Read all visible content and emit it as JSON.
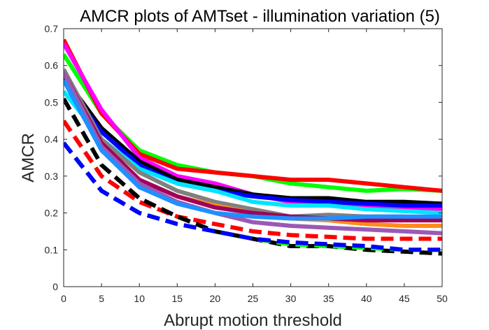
{
  "chart_data": {
    "type": "line",
    "title": "AMCR plots of AMTset - illumination variation (5)",
    "xlabel": "Abrupt motion threshold",
    "ylabel": "AMCR",
    "xlim": [
      0,
      50
    ],
    "ylim": [
      0,
      0.7
    ],
    "xticks": [
      "0",
      "5",
      "10",
      "15",
      "20",
      "25",
      "30",
      "35",
      "40",
      "45",
      "50"
    ],
    "yticks": [
      "0",
      "0.1",
      "0.2",
      "0.3",
      "0.4",
      "0.5",
      "0.6",
      "0.7"
    ],
    "grid": false,
    "legend": "none",
    "x": [
      0,
      5,
      10,
      15,
      20,
      25,
      30,
      35,
      40,
      45,
      50
    ],
    "series": [
      {
        "color": "#00ff00",
        "style": "solid",
        "values": [
          0.63,
          0.47,
          0.37,
          0.33,
          0.31,
          0.3,
          0.28,
          0.27,
          0.26,
          0.265,
          0.26
        ]
      },
      {
        "color": "#ff0000",
        "style": "solid",
        "values": [
          0.67,
          0.47,
          0.36,
          0.32,
          0.31,
          0.3,
          0.29,
          0.29,
          0.28,
          0.27,
          0.26
        ]
      },
      {
        "color": "#ff00ff",
        "style": "solid",
        "values": [
          0.66,
          0.48,
          0.35,
          0.3,
          0.28,
          0.25,
          0.23,
          0.23,
          0.22,
          0.215,
          0.21
        ]
      },
      {
        "color": "#000000",
        "style": "solid",
        "values": [
          0.57,
          0.43,
          0.34,
          0.29,
          0.27,
          0.25,
          0.24,
          0.24,
          0.23,
          0.23,
          0.225
        ]
      },
      {
        "color": "#0000ff",
        "style": "solid",
        "values": [
          0.56,
          0.42,
          0.33,
          0.28,
          0.26,
          0.245,
          0.235,
          0.23,
          0.225,
          0.22,
          0.22
        ]
      },
      {
        "color": "#00e5ff",
        "style": "solid",
        "values": [
          0.53,
          0.4,
          0.32,
          0.28,
          0.26,
          0.23,
          0.22,
          0.22,
          0.21,
          0.205,
          0.2
        ]
      },
      {
        "color": "#808080",
        "style": "solid",
        "values": [
          0.59,
          0.4,
          0.31,
          0.26,
          0.23,
          0.21,
          0.19,
          0.195,
          0.19,
          0.19,
          0.185
        ]
      },
      {
        "color": "#ff8c1a",
        "style": "solid",
        "values": [
          0.58,
          0.39,
          0.29,
          0.245,
          0.22,
          0.2,
          0.185,
          0.18,
          0.17,
          0.165,
          0.165
        ]
      },
      {
        "color": "#a0005a",
        "style": "solid",
        "values": [
          0.58,
          0.39,
          0.29,
          0.245,
          0.215,
          0.2,
          0.19,
          0.185,
          0.18,
          0.18,
          0.18
        ]
      },
      {
        "color": "#9b59b6",
        "style": "solid",
        "values": [
          0.58,
          0.38,
          0.28,
          0.23,
          0.2,
          0.175,
          0.165,
          0.16,
          0.155,
          0.15,
          0.145
        ]
      },
      {
        "color": "#1e90ff",
        "style": "solid",
        "values": [
          0.56,
          0.37,
          0.27,
          0.225,
          0.2,
          0.19,
          0.185,
          0.185,
          0.19,
          0.19,
          0.19
        ]
      },
      {
        "color": "#ff0000",
        "style": "dashed",
        "values": [
          0.45,
          0.3,
          0.23,
          0.19,
          0.17,
          0.15,
          0.14,
          0.135,
          0.13,
          0.13,
          0.13
        ]
      },
      {
        "color": "#000000",
        "style": "dashed",
        "values": [
          0.51,
          0.33,
          0.24,
          0.19,
          0.15,
          0.13,
          0.11,
          0.11,
          0.1,
          0.095,
          0.09
        ]
      },
      {
        "color": "#00ff00",
        "style": "dashed",
        "values": [
          0.39,
          0.26,
          0.2,
          0.17,
          0.15,
          0.13,
          0.115,
          0.11,
          0.105,
          0.1,
          0.1
        ]
      },
      {
        "color": "#0000ff",
        "style": "dashed",
        "values": [
          0.39,
          0.26,
          0.2,
          0.17,
          0.15,
          0.13,
          0.12,
          0.115,
          0.11,
          0.1,
          0.1
        ]
      }
    ]
  }
}
